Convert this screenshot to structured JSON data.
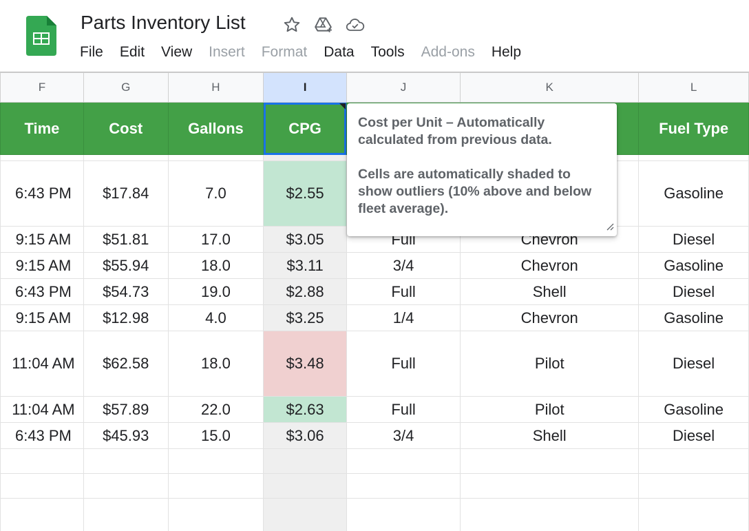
{
  "app": {
    "title": "Parts Inventory List",
    "logo_icon": "sheets-logo-icon",
    "title_icons": [
      "star-icon",
      "move-to-drive-icon",
      "cloud-saved-icon"
    ]
  },
  "menu": [
    "File",
    "Edit",
    "View",
    "Insert",
    "Format",
    "Data",
    "Tools",
    "Add-ons",
    "Help"
  ],
  "menu_disabled": [
    "Insert",
    "Format",
    "Add-ons"
  ],
  "columns": [
    "F",
    "G",
    "H",
    "I",
    "J",
    "K",
    "L"
  ],
  "selected_column": "I",
  "headers": [
    "Time",
    "Cost",
    "Gallons",
    "CPG",
    "",
    "",
    "Fuel Type"
  ],
  "rows": [
    {
      "time": "6:43 PM",
      "cost": "$17.84",
      "gallons": "7.0",
      "cpg": "$2.55",
      "level": "",
      "station": "",
      "fuel": "Gasoline",
      "cpg_shade": "green"
    },
    {
      "time": "9:15 AM",
      "cost": "$51.81",
      "gallons": "17.0",
      "cpg": "$3.05",
      "level": "Full",
      "station": "Chevron",
      "fuel": "Diesel",
      "cpg_shade": ""
    },
    {
      "time": "9:15 AM",
      "cost": "$55.94",
      "gallons": "18.0",
      "cpg": "$3.11",
      "level": "3/4",
      "station": "Chevron",
      "fuel": "Gasoline",
      "cpg_shade": ""
    },
    {
      "time": "6:43 PM",
      "cost": "$54.73",
      "gallons": "19.0",
      "cpg": "$2.88",
      "level": "Full",
      "station": "Shell",
      "fuel": "Diesel",
      "cpg_shade": ""
    },
    {
      "time": "9:15 AM",
      "cost": "$12.98",
      "gallons": "4.0",
      "cpg": "$3.25",
      "level": "1/4",
      "station": "Chevron",
      "fuel": "Gasoline",
      "cpg_shade": ""
    },
    {
      "time": "11:04 AM",
      "cost": "$62.58",
      "gallons": "18.0",
      "cpg": "$3.48",
      "level": "Full",
      "station": "Pilot",
      "fuel": "Diesel",
      "cpg_shade": "red"
    },
    {
      "time": "11:04 AM",
      "cost": "$57.89",
      "gallons": "22.0",
      "cpg": "$2.63",
      "level": "Full",
      "station": "Pilot",
      "fuel": "Gasoline",
      "cpg_shade": "green"
    },
    {
      "time": "6:43 PM",
      "cost": "$45.93",
      "gallons": "15.0",
      "cpg": "$3.06",
      "level": "3/4",
      "station": "Shell",
      "fuel": "Diesel",
      "cpg_shade": ""
    }
  ],
  "note": {
    "para1": "Cost per Unit – Automatically calculated from previous data.",
    "para2": "Cells are automatically shaded to show outliers (10% above and below fleet average)."
  },
  "colors": {
    "header_green": "#43a047",
    "outlier_low": "#c2e6d2",
    "outlier_high": "#f0d0d0",
    "selection_blue": "#1a73e8"
  }
}
